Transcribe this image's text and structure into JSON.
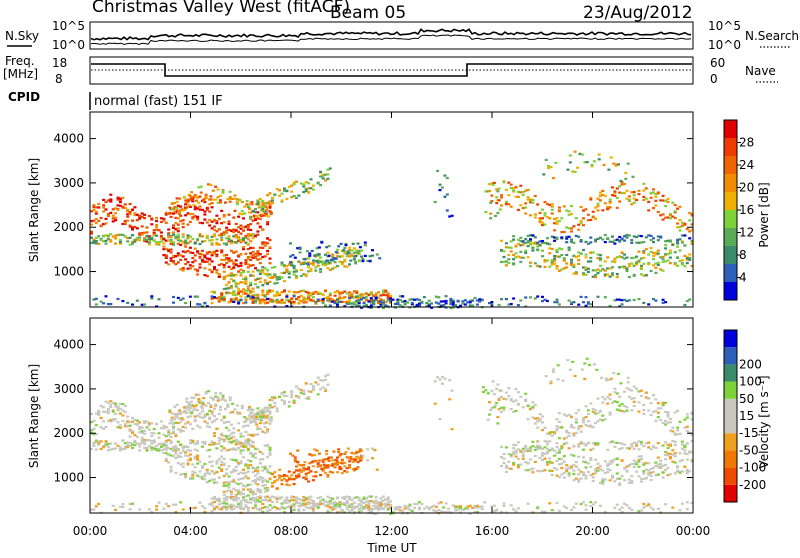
{
  "header": {
    "station": "Christmas Valley West (fitACF)",
    "beam": "Beam 05",
    "date": "23/Aug/2012"
  },
  "top_panels": {
    "nsky_label": "N.Sky",
    "nsky_ticks": [
      "10^5",
      "10^0"
    ],
    "nsearch_label": "N.Search",
    "nsearch_ticks": [
      "10^5",
      "10^0"
    ],
    "freq_label_1": "Freq.",
    "freq_label_2": "[MHz]",
    "freq_ticks": [
      "18",
      "8"
    ],
    "nave_label": "Nave",
    "nave_ticks": [
      "60",
      "0"
    ],
    "cpid_label": "CPID",
    "cpid_value": "normal (fast) 151 IF"
  },
  "colors": {
    "power_scale": [
      "#0000dd",
      "#2b5fb8",
      "#3b8a6a",
      "#5aaa58",
      "#7dd23a",
      "#f0b000",
      "#f08c00",
      "#f06400",
      "#ee3c00",
      "#e00000"
    ],
    "velocity_scale": [
      "#e00000",
      "#f04a00",
      "#f07800",
      "#f0a020",
      "#c8c8c0",
      "#c8c8c0",
      "#7dd23a",
      "#3b8a6a",
      "#2b5fb8",
      "#0000dd"
    ]
  },
  "chart_data": [
    {
      "type": "heatmap",
      "name": "power",
      "ylabel": "Slant Range [km]",
      "yticks": [
        "1000",
        "2000",
        "3000",
        "4000"
      ],
      "ylim": [
        200,
        4600
      ],
      "xticks": [
        "00:00",
        "04:00",
        "08:00",
        "12:00",
        "16:00",
        "20:00",
        "00:00"
      ],
      "colorbar_label": "Power [dB]",
      "colorbar_ticks": [
        "4",
        "8",
        "12",
        "16",
        "20",
        "24",
        "28"
      ],
      "clim": [
        0,
        32
      ]
    },
    {
      "type": "heatmap",
      "name": "velocity",
      "ylabel": "Slant Range [km]",
      "yticks": [
        "1000",
        "2000",
        "3000",
        "4000"
      ],
      "ylim": [
        200,
        4600
      ],
      "xticks": [
        "00:00",
        "04:00",
        "08:00",
        "12:00",
        "16:00",
        "20:00",
        "00:00"
      ],
      "xlabel": "Time UT",
      "colorbar_label": "Velocity [m s⁻¹]",
      "colorbar_ticks": [
        "-200",
        "-100",
        "-50",
        "-15",
        "15",
        "50",
        "100",
        "200"
      ]
    }
  ]
}
